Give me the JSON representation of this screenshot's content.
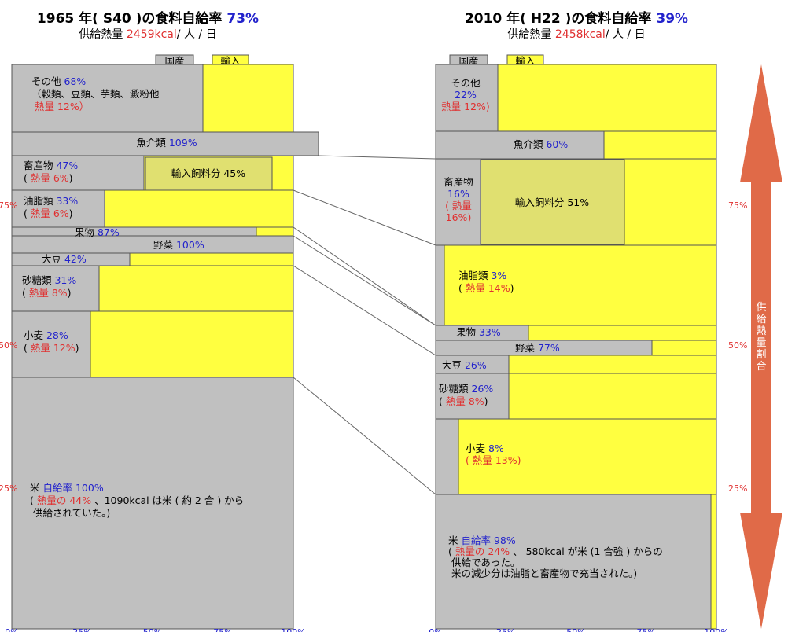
{
  "colors": {
    "domestic": "#c0c0c0",
    "import": "#ffff40",
    "feed": "#e0e070",
    "arrow": "#e06a48",
    "pct": "#2222cc",
    "heat": "#e03030"
  },
  "legend": {
    "domestic": "国産",
    "import": "輸入"
  },
  "side_axis": {
    "label": "供給熱量割合",
    "ticks": [
      "75%",
      "50%",
      "25%"
    ]
  },
  "bottom_ticks": [
    "0%",
    "25%",
    "50%",
    "75%",
    "100%"
  ],
  "left": {
    "title_prefix": "1965 年( S40 )の食料自給率",
    "title_pct": "73%",
    "sub_prefix": "供給熱量",
    "sub_kcal": "2459kcal",
    "sub_suffix": "/ 人 / 日"
  },
  "right": {
    "title_prefix": "2010 年( H22 )の食料自給率",
    "title_pct": "39%",
    "sub_prefix": "供給熱量",
    "sub_kcal": "2458kcal",
    "sub_suffix": "/ 人 / 日"
  },
  "chart_data": [
    {
      "type": "bar",
      "title": "1965 年( S40 )の食料自給率 73%",
      "xlim": [
        0,
        100
      ],
      "categories": [
        "その他",
        "魚介類",
        "畜産物",
        "油脂類",
        "果物",
        "野菜",
        "大豆",
        "砂糖類",
        "小麦",
        "米"
      ],
      "self_sufficiency_pct": [
        68,
        109,
        47,
        33,
        87,
        100,
        42,
        31,
        28,
        100
      ],
      "calorie_share_pct": [
        12,
        null,
        6,
        6,
        null,
        null,
        null,
        8,
        12,
        44
      ],
      "imported_feed_pct": 45,
      "labels": [
        {
          "lines": [
            [
              [
                "その他  ",
                "k"
              ],
              [
                "68%",
                "b"
              ]
            ],
            [
              [
                "（穀類、豆類、芋類、澱粉他",
                "k"
              ]
            ],
            [
              [
                "  熱量 12%）",
                "r"
              ]
            ]
          ]
        },
        {
          "lines": [
            [
              [
                "魚介類  ",
                "k"
              ],
              [
                "109%",
                "b"
              ]
            ]
          ]
        },
        {
          "lines": [
            [
              [
                "畜産物 ",
                "k"
              ],
              [
                "47%",
                "b"
              ]
            ],
            [
              [
                "( ",
                "k"
              ],
              [
                "熱量 6%",
                "r"
              ],
              [
                ")",
                "k"
              ]
            ]
          ]
        },
        {
          "lines": [
            [
              [
                "油脂類  ",
                "k"
              ],
              [
                "33%",
                "b"
              ]
            ],
            [
              [
                "( ",
                "k"
              ],
              [
                "熱量 6%",
                "r"
              ],
              [
                ")",
                "k"
              ]
            ]
          ]
        },
        {
          "lines": [
            [
              [
                "果物 ",
                "k"
              ],
              [
                "87%",
                "b"
              ]
            ]
          ]
        },
        {
          "lines": [
            [
              [
                "野菜  ",
                "k"
              ],
              [
                "100%",
                "b"
              ]
            ]
          ]
        },
        {
          "lines": [
            [
              [
                "大豆  ",
                "k"
              ],
              [
                "42%",
                "b"
              ]
            ]
          ]
        },
        {
          "lines": [
            [
              [
                "砂糖類  ",
                "k"
              ],
              [
                "31%",
                "b"
              ]
            ],
            [
              [
                "( ",
                "k"
              ],
              [
                "熱量 8%",
                "r"
              ],
              [
                ")",
                "k"
              ]
            ]
          ]
        },
        {
          "lines": [
            [
              [
                "小麦  ",
                "k"
              ],
              [
                "28%",
                "b"
              ]
            ],
            [
              [
                "( ",
                "k"
              ],
              [
                "熱量 12%",
                "r"
              ],
              [
                ")",
                "k"
              ]
            ]
          ]
        },
        {
          "lines": [
            [
              [
                "米  ",
                "k"
              ],
              [
                "自給率 100%",
                "b"
              ]
            ],
            [
              [
                "( ",
                "k"
              ],
              [
                "熱量の 44% ",
                "r"
              ],
              [
                "、1090kcal は米 ( 約 2 合 ) から",
                "k"
              ]
            ],
            [
              [
                "  供給されていた。)",
                "k"
              ]
            ]
          ]
        }
      ],
      "feed_label": "輸入飼料分  45%"
    },
    {
      "type": "bar",
      "title": "2010 年( H22 )の食料自給率 39%",
      "xlim": [
        0,
        100
      ],
      "categories": [
        "その他",
        "魚介類",
        "畜産物",
        "油脂類",
        "果物",
        "野菜",
        "大豆",
        "砂糖類",
        "小麦",
        "米"
      ],
      "self_sufficiency_pct": [
        22,
        60,
        16,
        3,
        33,
        77,
        26,
        26,
        8,
        98
      ],
      "calorie_share_pct": [
        12,
        null,
        16,
        14,
        null,
        null,
        null,
        8,
        13,
        24
      ],
      "imported_feed_pct": 51,
      "labels": [
        {
          "lines": [
            [
              [
                "その他",
                "k"
              ]
            ],
            [
              [
                "22%",
                "b"
              ]
            ],
            [
              [
                "熱量 12%)",
                "r"
              ]
            ]
          ]
        },
        {
          "lines": [
            [
              [
                "魚介類  ",
                "k"
              ],
              [
                "60%",
                "b"
              ]
            ]
          ]
        },
        {
          "lines": [
            [
              [
                "畜産物",
                "k"
              ]
            ],
            [
              [
                "16%",
                "b"
              ]
            ],
            [
              [
                "( 熱量",
                "r"
              ]
            ],
            [
              [
                "16%)",
                "r"
              ]
            ]
          ]
        },
        {
          "lines": [
            [
              [
                "油脂類  ",
                "k"
              ],
              [
                "3%",
                "b"
              ]
            ],
            [
              [
                "( ",
                "k"
              ],
              [
                "熱量 14%",
                "r"
              ],
              [
                ")",
                "k"
              ]
            ]
          ]
        },
        {
          "lines": [
            [
              [
                "果物  ",
                "k"
              ],
              [
                "33%",
                "b"
              ]
            ]
          ]
        },
        {
          "lines": [
            [
              [
                "野菜  ",
                "k"
              ],
              [
                "77%",
                "b"
              ]
            ]
          ]
        },
        {
          "lines": [
            [
              [
                "大豆  ",
                "k"
              ],
              [
                "26%",
                "b"
              ]
            ]
          ]
        },
        {
          "lines": [
            [
              [
                "砂糖類  ",
                "k"
              ],
              [
                "26%",
                "b"
              ]
            ],
            [
              [
                "( ",
                "k"
              ],
              [
                "熱量 8%",
                "r"
              ],
              [
                ")",
                "k"
              ]
            ]
          ]
        },
        {
          "lines": [
            [
              [
                "小麦  ",
                "k"
              ],
              [
                "8%",
                "b"
              ]
            ],
            [
              [
                "( 熱量 13%)",
                "r"
              ]
            ]
          ]
        },
        {
          "lines": [
            [
              [
                "米  ",
                "k"
              ],
              [
                "自給率 98%",
                "b"
              ]
            ],
            [
              [
                "( ",
                "k"
              ],
              [
                "熱量の 24% ",
                "r"
              ],
              [
                "、 580kcal が米 (1 合強 ) からの",
                "k"
              ]
            ],
            [
              [
                "  供給であった。",
                "k"
              ]
            ],
            [
              [
                "  米の減少分は油脂と畜産物で充当された。)",
                "k"
              ]
            ]
          ]
        }
      ],
      "feed_label": "輸入飼料分  51%"
    }
  ]
}
